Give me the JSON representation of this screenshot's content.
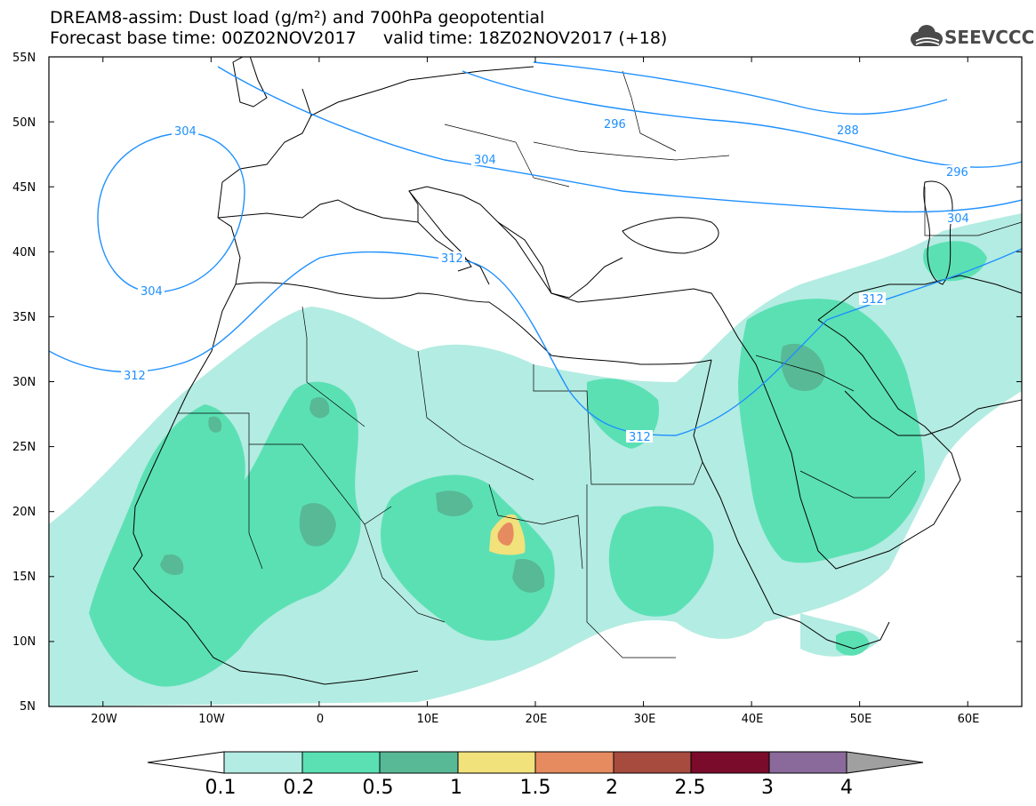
{
  "header": {
    "line1": "DREAM8-assim: Dust load (g/m²) and 700hPa geopotential",
    "line2": "Forecast base time: 00Z02NOV2017     valid time: 18Z02NOV2017 (+18)"
  },
  "logo": {
    "text": "SEEVCCC",
    "icon": "cloud-icon"
  },
  "map": {
    "lat_labels": [
      "55N",
      "50N",
      "45N",
      "40N",
      "35N",
      "30N",
      "25N",
      "20N",
      "15N",
      "10N",
      "5N"
    ],
    "lon_labels": [
      "20W",
      "10W",
      "0",
      "10E",
      "20E",
      "30E",
      "40E",
      "50E",
      "60E"
    ],
    "extent": {
      "lon": [
        -25,
        65
      ],
      "lat": [
        5,
        55
      ]
    },
    "geopotential_labels": [
      "304",
      "304",
      "296",
      "304",
      "288",
      "296",
      "304",
      "312",
      "312",
      "312",
      "312"
    ],
    "colors": {
      "coast": "#000000",
      "contour": "#1e90ff"
    }
  },
  "colorbar": {
    "labels": [
      "0.1",
      "0.2",
      "0.5",
      "1",
      "1.5",
      "2",
      "2.5",
      "3",
      "4"
    ],
    "colors": [
      "#b3ece2",
      "#5be0b4",
      "#58b996",
      "#f1e27c",
      "#e68a60",
      "#a84b3f",
      "#7a0b2a",
      "#8a6a9a",
      "#a0a0a0"
    ],
    "under_color": "#ffffff",
    "over_color": "#a0a0a0"
  }
}
